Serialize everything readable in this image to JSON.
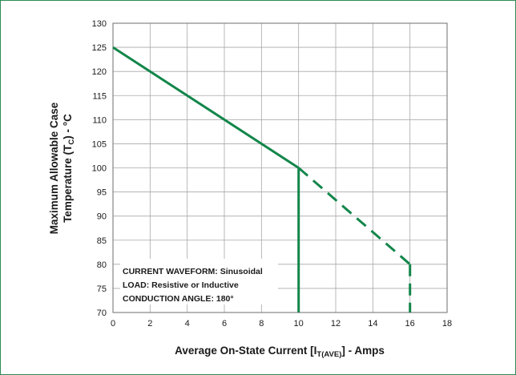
{
  "colors": {
    "frame": "#2e8b57",
    "curve": "#12864a",
    "grid": "#a8a8a8",
    "axis": "#6e6e6e",
    "text": "#1a1a1a"
  },
  "chart_data": {
    "type": "line",
    "title": "",
    "xlabel": {
      "pre": "Average On-State Current [I",
      "sub": "T(AVE)",
      "post": "] - Amps"
    },
    "ylabel": {
      "line1": "Maximum Allowable Case",
      "line2_pre": "Temperature (T",
      "line2_sub": "C",
      "line2_post": ") - °C"
    },
    "xlim": [
      0,
      18
    ],
    "ylim": [
      70,
      130
    ],
    "xticks": [
      0,
      2,
      4,
      6,
      8,
      10,
      12,
      14,
      16,
      18
    ],
    "yticks": [
      70,
      75,
      80,
      85,
      90,
      95,
      100,
      105,
      110,
      115,
      120,
      125,
      130
    ],
    "grid": true,
    "series": [
      {
        "style": "solid",
        "x": [
          0,
          10
        ],
        "y": [
          125,
          100
        ]
      },
      {
        "style": "solid",
        "x": [
          10,
          10
        ],
        "y": [
          100,
          70
        ]
      },
      {
        "style": "dashed",
        "x": [
          10,
          16
        ],
        "y": [
          100,
          80
        ]
      },
      {
        "style": "dashed",
        "x": [
          16,
          16
        ],
        "y": [
          80,
          70
        ]
      }
    ],
    "annotations": [
      "CURRENT WAVEFORM: Sinusoidal",
      "LOAD: Resistive or Inductive",
      "CONDUCTION ANGLE: 180°"
    ]
  }
}
